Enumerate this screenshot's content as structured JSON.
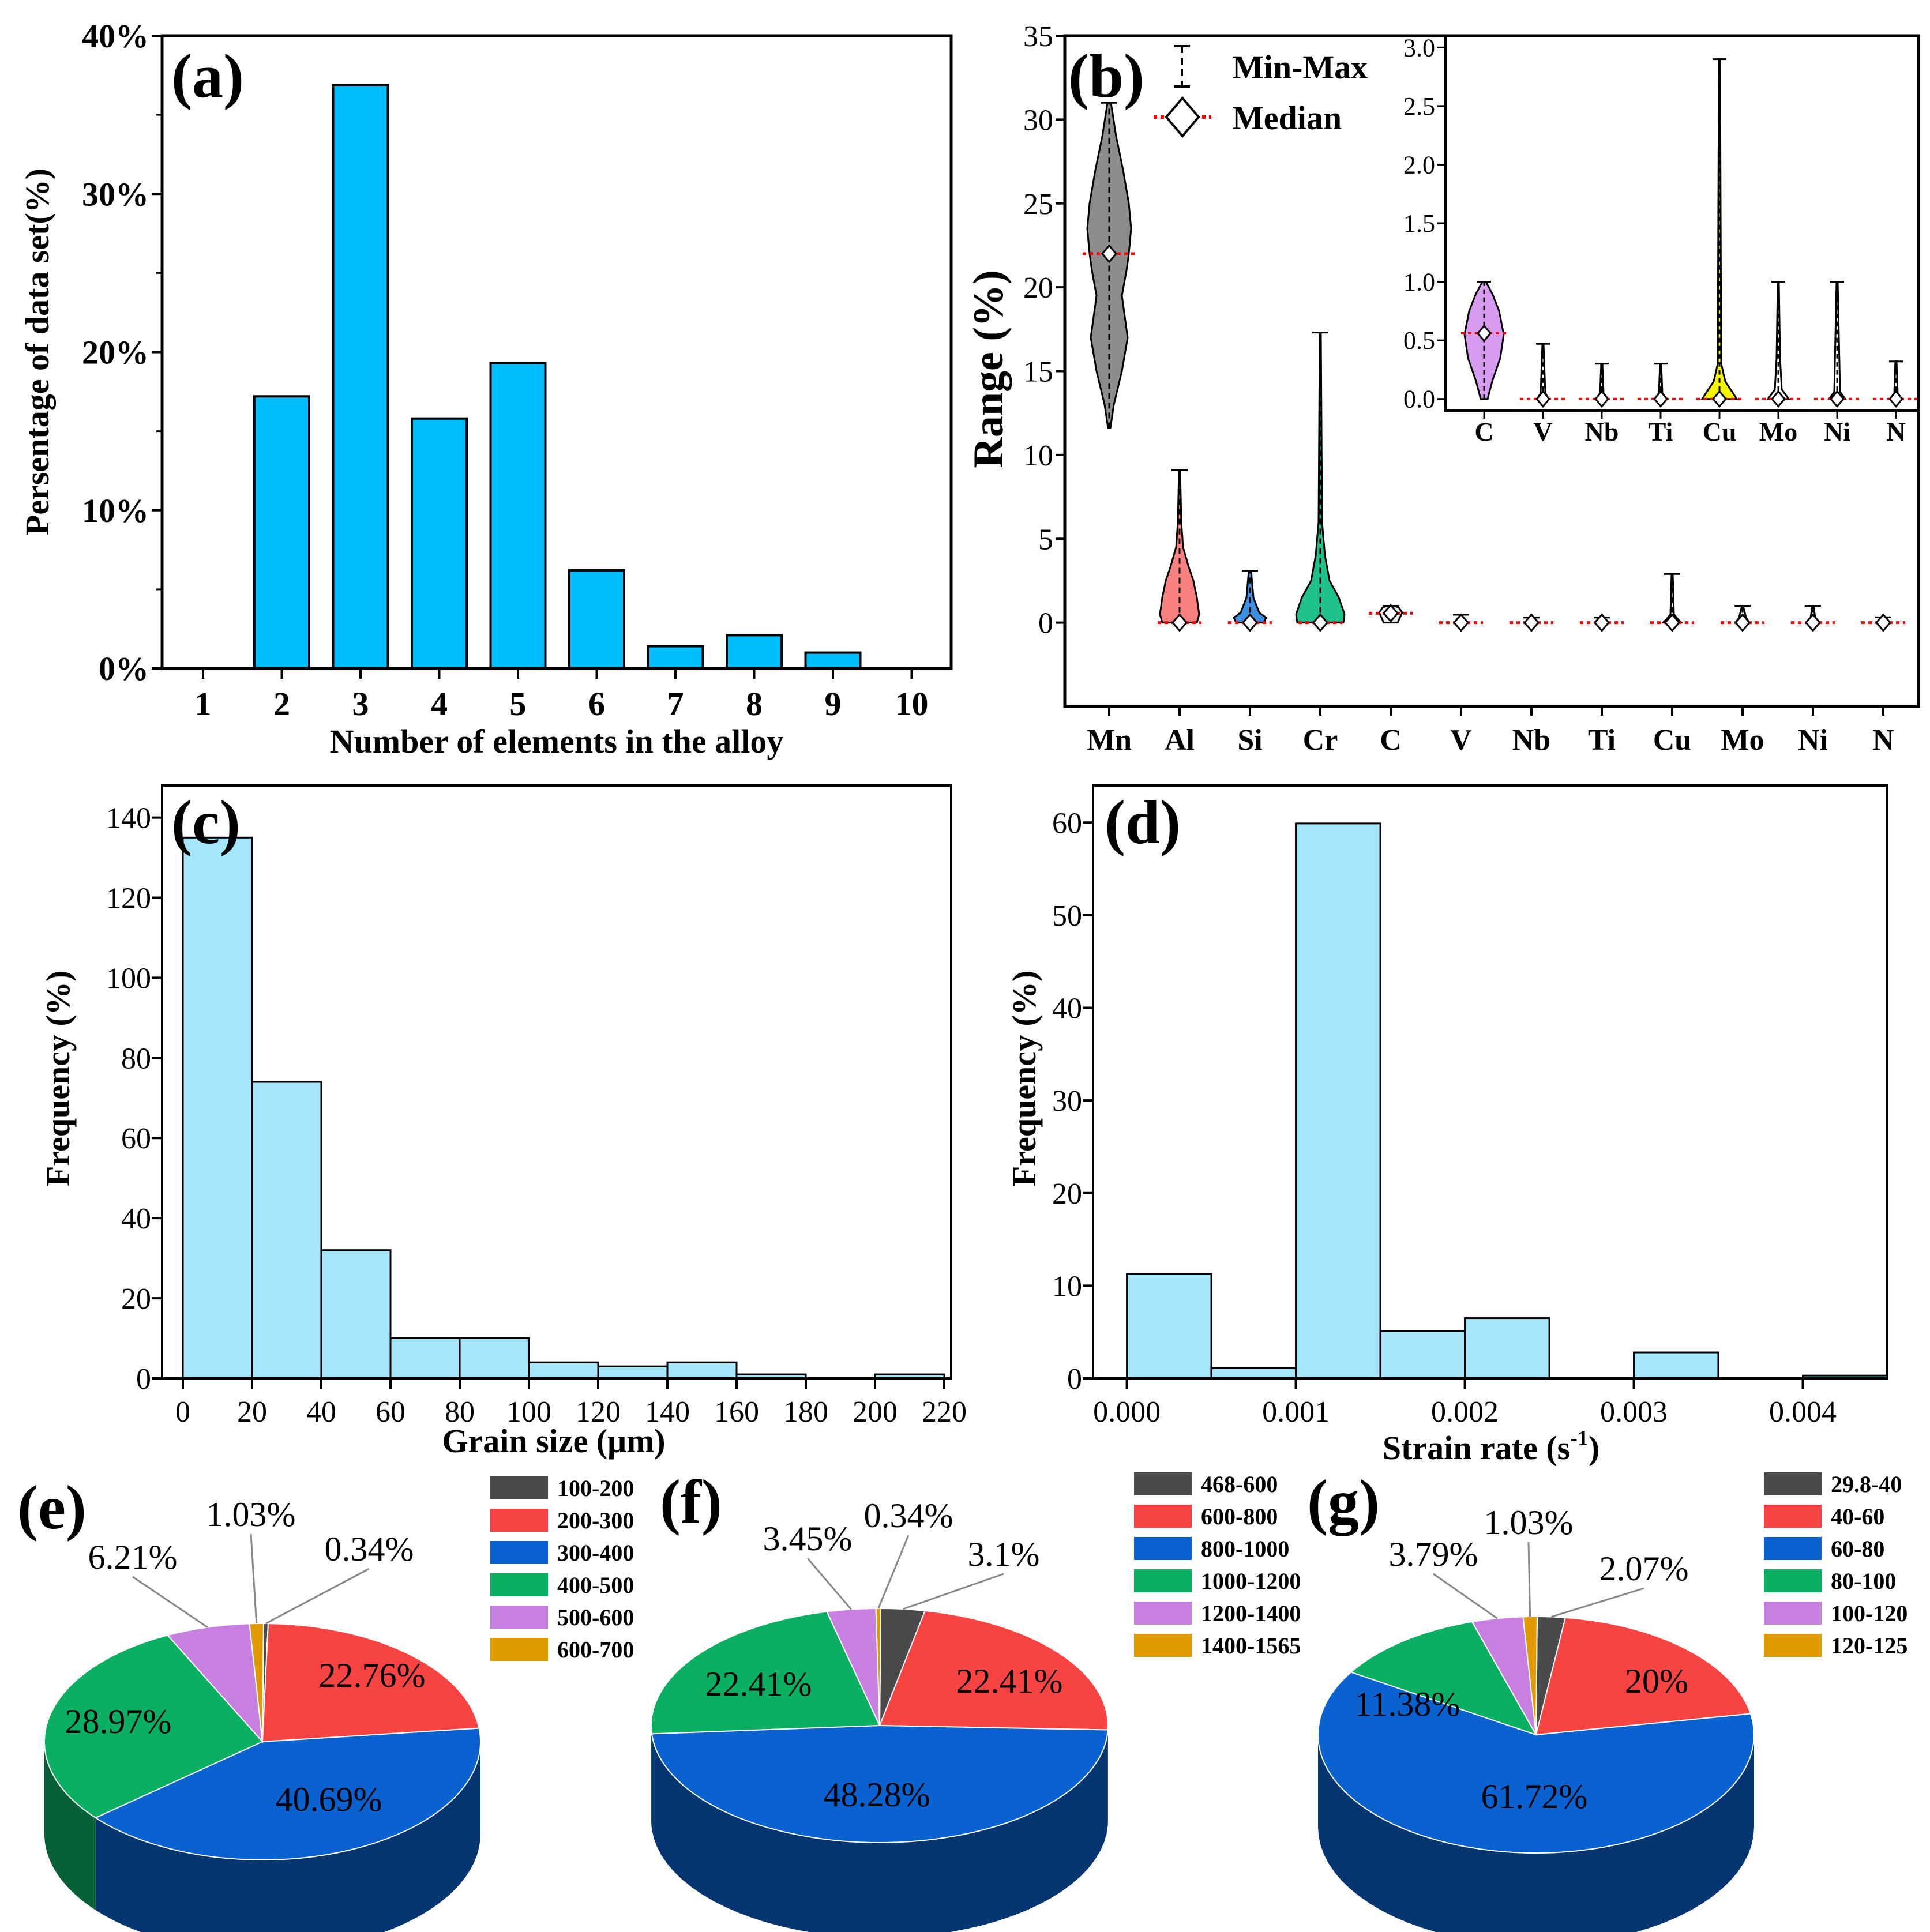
{
  "colors": {
    "bar_a": "#00bfff",
    "hist": "#a6e6fb",
    "median": "#ff0000",
    "violin_mn": "#8c8c8c",
    "violin_al": "#f8807e",
    "violin_si": "#3d8fe0",
    "violin_cr": "#1ec08c",
    "violin_c_inset": "#d79bf0",
    "violin_cu_inset": "#f5f500",
    "pie_black": "#4a4a4a",
    "pie_red": "#f74341",
    "pie_blue": "#0a62d0",
    "pie_green": "#0aaf62",
    "pie_purple": "#c880e0",
    "pie_orange": "#e09a00"
  },
  "chart_data": [
    {
      "panel": "(a)",
      "type": "bar",
      "xlabel": "Number of elements in the alloy",
      "ylabel": "Persentage of data set(%)",
      "categories": [
        "1",
        "2",
        "3",
        "4",
        "5",
        "6",
        "7",
        "8",
        "9",
        "10"
      ],
      "values": [
        0,
        17.2,
        36.9,
        15.8,
        19.3,
        6.2,
        1.4,
        2.1,
        1.0,
        0
      ],
      "ylim": [
        0,
        40
      ],
      "yticks": [
        "0%",
        "10%",
        "20%",
        "30%",
        "40%"
      ]
    },
    {
      "panel": "(b)",
      "type": "violin",
      "ylabel": "Range (%)",
      "ylim": [
        -5,
        35
      ],
      "yticks": [
        "0",
        "5",
        "10",
        "15",
        "20",
        "25",
        "30",
        "35"
      ],
      "legend": [
        "Min-Max",
        "Median"
      ],
      "legend_position": "top",
      "elements": [
        {
          "name": "Mn",
          "min": 11.6,
          "max": 31,
          "median": 22
        },
        {
          "name": "Al",
          "min": 0,
          "max": 9.1,
          "median": 0
        },
        {
          "name": "Si",
          "min": 0,
          "max": 3.1,
          "median": 0
        },
        {
          "name": "Cr",
          "min": 0,
          "max": 17.3,
          "median": 0
        },
        {
          "name": "C",
          "min": 0,
          "max": 1,
          "median": 0.56
        },
        {
          "name": "V",
          "min": 0,
          "max": 0.47,
          "median": 0
        },
        {
          "name": "Nb",
          "min": 0,
          "max": 0.3,
          "median": 0
        },
        {
          "name": "Ti",
          "min": 0,
          "max": 0.3,
          "median": 0
        },
        {
          "name": "Cu",
          "min": 0,
          "max": 2.9,
          "median": 0
        },
        {
          "name": "Mo",
          "min": 0,
          "max": 1,
          "median": 0
        },
        {
          "name": "Ni",
          "min": 0,
          "max": 1,
          "median": 0
        },
        {
          "name": "N",
          "min": 0,
          "max": 0.32,
          "median": 0
        }
      ],
      "inset": {
        "ylim": [
          -0.1,
          3.1
        ],
        "yticks": [
          "0.0",
          "0.5",
          "1.0",
          "1.5",
          "2.0",
          "2.5",
          "3.0"
        ],
        "categories": [
          "C",
          "V",
          "Nb",
          "Ti",
          "Cu",
          "Mo",
          "Ni",
          "N"
        ]
      }
    },
    {
      "panel": "(c)",
      "type": "histogram",
      "xlabel": "Grain size (μm)",
      "ylabel": "Frequency (%)",
      "bin_edges": [
        0,
        20,
        40,
        60,
        80,
        100,
        120,
        140,
        160,
        180,
        200,
        220
      ],
      "values": [
        135,
        74,
        32,
        10,
        10,
        4,
        3,
        4,
        1,
        0,
        1
      ],
      "xlim": [
        -6,
        222
      ],
      "ylim": [
        0,
        148
      ],
      "xticks": [
        "0",
        "20",
        "40",
        "60",
        "80",
        "100",
        "120",
        "140",
        "160",
        "180",
        "200",
        "220"
      ],
      "yticks": [
        "0",
        "20",
        "40",
        "60",
        "80",
        "100",
        "120",
        "140"
      ]
    },
    {
      "panel": "(d)",
      "type": "histogram",
      "xlabel_main": "Strain rate (s",
      "xlabel_sup": "-1",
      "xlabel_end": ")",
      "ylabel": "Frequency (%)",
      "bin_edges": [
        0,
        0.0005,
        0.001,
        0.0015,
        0.002,
        0.0025,
        0.003,
        0.0035,
        0.004,
        0.0045
      ],
      "values": [
        11.3,
        1.1,
        59.9,
        5.1,
        6.5,
        0,
        2.8,
        0,
        0.3
      ],
      "xlim": [
        -0.0002,
        0.0045
      ],
      "ylim": [
        0,
        64
      ],
      "xticks": [
        "0.000",
        "0.001",
        "0.002",
        "0.003",
        "0.004"
      ],
      "yticks": [
        "0",
        "10",
        "20",
        "30",
        "40",
        "50",
        "60"
      ]
    },
    {
      "panel": "(e)",
      "type": "pie",
      "legend": [
        "100-200",
        "200-300",
        "300-400",
        "400-500",
        "500-600",
        "600-700"
      ],
      "values": [
        0.34,
        22.76,
        40.69,
        28.97,
        6.21,
        1.03
      ],
      "labels": [
        "0.34%",
        "22.76%",
        "40.69%",
        "28.97%",
        "6.21%",
        "1.03%"
      ]
    },
    {
      "panel": "(f)",
      "type": "pie",
      "legend": [
        "468-600",
        "600-800",
        "800-1000",
        "1000-1200",
        "1200-1400",
        "1400-1565"
      ],
      "values": [
        3.1,
        22.41,
        48.28,
        22.41,
        3.45,
        0.34
      ],
      "labels": [
        "3.1%",
        "22.41%",
        "48.28%",
        "22.41%",
        "3.45%",
        "0.34%"
      ]
    },
    {
      "panel": "(g)",
      "type": "pie",
      "legend": [
        "29.8-40",
        "40-60",
        "60-80",
        "80-100",
        "100-120",
        "120-125"
      ],
      "values": [
        2.07,
        20,
        61.72,
        11.38,
        3.79,
        1.03
      ],
      "labels": [
        "2.07%",
        "20%",
        "61.72%",
        "11.38%",
        "3.79%",
        "1.03%"
      ]
    }
  ]
}
